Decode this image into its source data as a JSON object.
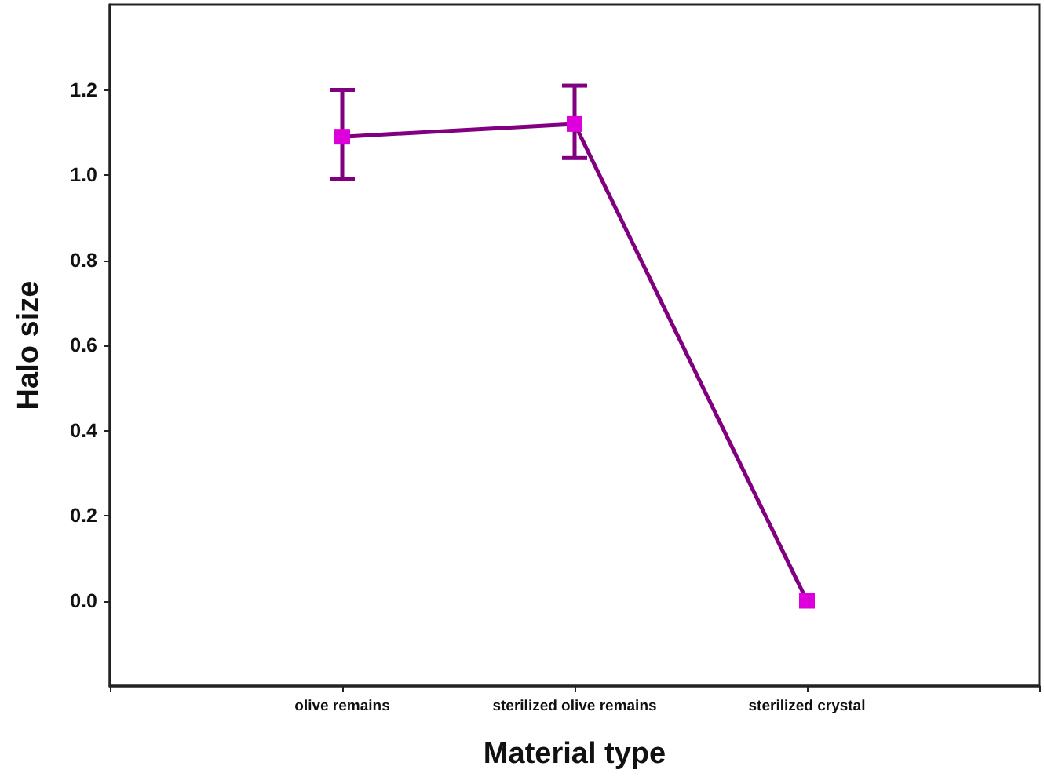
{
  "chart_data": {
    "type": "line",
    "xlabel": "Material type",
    "ylabel": "Halo size",
    "categories": [
      "olive remains",
      "sterilized olive remains",
      "sterilized crystal"
    ],
    "series": [
      {
        "color": "#800080",
        "colors": [
          "#dd00dd",
          "#dd00dd",
          "#dd00dd"
        ],
        "values": [
          1.09,
          1.12,
          0
        ],
        "errors": [
          [
            0.99,
            1.2
          ],
          [
            1.04,
            1.21
          ],
          null
        ]
      }
    ],
    "ylim": [
      -0.2,
      1.4
    ],
    "yticks": [
      {
        "value": 0,
        "label": "0.0"
      },
      {
        "value": 0.2,
        "label": "0.2"
      },
      {
        "value": 0.4,
        "label": "0.4"
      },
      {
        "value": 0.6,
        "label": "0.6"
      },
      {
        "value": 0.8,
        "label": "0.8"
      },
      {
        "value": 1,
        "label": "1.0"
      },
      {
        "value": 1.2,
        "label": "1.2"
      }
    ],
    "marker": "square",
    "line_style": "solid"
  }
}
